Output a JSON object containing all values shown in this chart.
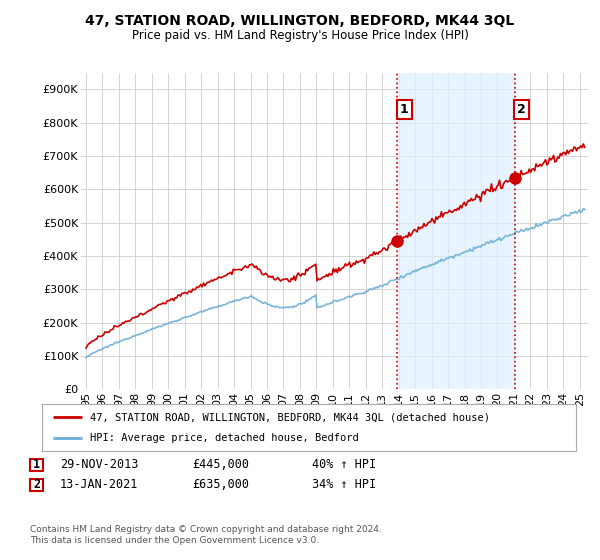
{
  "title": "47, STATION ROAD, WILLINGTON, BEDFORD, MK44 3QL",
  "subtitle": "Price paid vs. HM Land Registry's House Price Index (HPI)",
  "ylabel_ticks": [
    "£0",
    "£100K",
    "£200K",
    "£300K",
    "£400K",
    "£500K",
    "£600K",
    "£700K",
    "£800K",
    "£900K"
  ],
  "ytick_values": [
    0,
    100000,
    200000,
    300000,
    400000,
    500000,
    600000,
    700000,
    800000,
    900000
  ],
  "ylim": [
    0,
    950000
  ],
  "xlim_start": 1994.7,
  "xlim_end": 2025.5,
  "hpi_color": "#6baed6",
  "price_color": "#cc0000",
  "vline_color": "#cc0000",
  "fill_color": "#ddeeff",
  "sale1_x": 2013.91,
  "sale1_y": 445000,
  "sale1_label": "1",
  "sale2_x": 2021.04,
  "sale2_y": 635000,
  "sale2_label": "2",
  "legend_line1": "47, STATION ROAD, WILLINGTON, BEDFORD, MK44 3QL (detached house)",
  "legend_line2": "HPI: Average price, detached house, Bedford",
  "table_row1": [
    "1",
    "29-NOV-2013",
    "£445,000",
    "40% ↑ HPI"
  ],
  "table_row2": [
    "2",
    "13-JAN-2021",
    "£635,000",
    "34% ↑ HPI"
  ],
  "footer": "Contains HM Land Registry data © Crown copyright and database right 2024.\nThis data is licensed under the Open Government Licence v3.0.",
  "background_color": "#ffffff",
  "plot_bg_color": "#ffffff",
  "grid_color": "#cccccc"
}
